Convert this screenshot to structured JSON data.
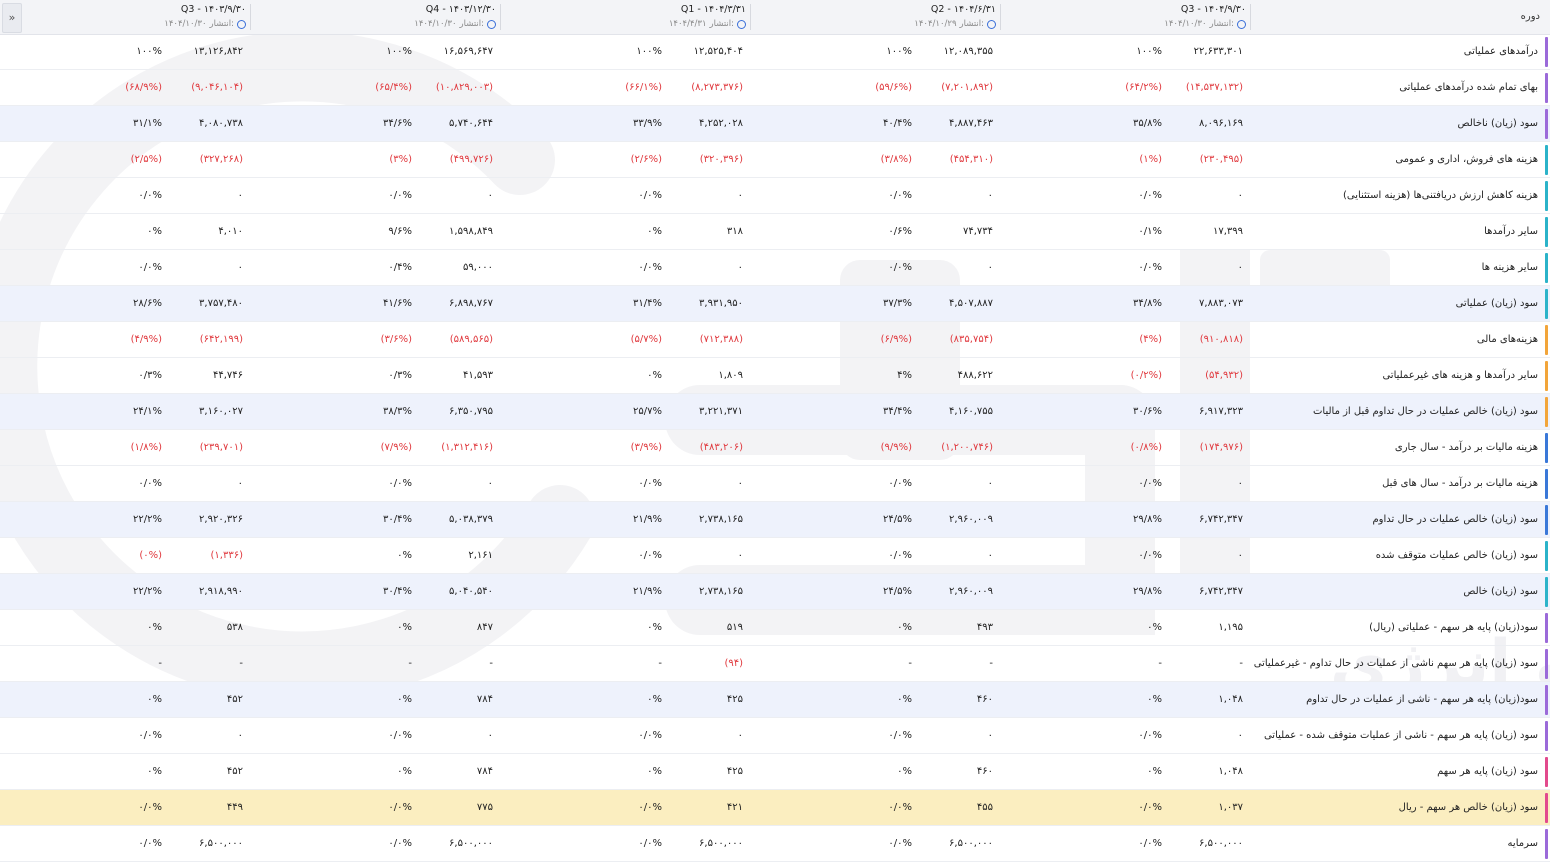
{
  "header": {
    "period_label": "دوره",
    "expand_icon": "»",
    "publish_label": "انتشار:",
    "columns": [
      {
        "title": "Q3 - ۱۴۰۴/۹/۳۰",
        "published": "۱۴۰۴/۱۰/۳۰"
      },
      {
        "title": "Q2 - ۱۴۰۴/۶/۳۱",
        "published": "۱۴۰۴/۱۰/۲۹"
      },
      {
        "title": "Q1 - ۱۴۰۴/۳/۳۱",
        "published": "۱۴۰۴/۴/۳۱"
      },
      {
        "title": "Q4 - ۱۴۰۳/۱۲/۳۰",
        "published": "۱۴۰۴/۱۰/۳۰"
      },
      {
        "title": "Q3 - ۱۴۰۳/۹/۳۰",
        "published": "۱۴۰۴/۱۰/۳۰"
      }
    ]
  },
  "watermark": {
    "text": "کارگزار بورس اوراق بهادار، کالا و انرژی"
  },
  "colors": {
    "negative": "#e0393e",
    "alt_row": "#eef2fc",
    "highlight_row": "#fbeec0"
  },
  "rows": [
    {
      "label": "درآمدهای عملیاتی",
      "bar": "#9b6ad9",
      "style": "",
      "cells": [
        [
          "۲۲,۶۳۳,۳۰۱",
          "۱۰۰%"
        ],
        [
          "۱۲,۰۸۹,۳۵۵",
          "۱۰۰%"
        ],
        [
          "۱۲,۵۲۵,۴۰۴",
          "۱۰۰%"
        ],
        [
          "۱۶,۵۶۹,۶۴۷",
          "۱۰۰%"
        ],
        [
          "۱۳,۱۲۶,۸۴۲",
          "۱۰۰%"
        ]
      ]
    },
    {
      "label": "بهای تمام شده درآمدهای عملیاتی",
      "bar": "#9b6ad9",
      "style": "",
      "cells": [
        [
          "(۱۴,۵۳۷,۱۳۲)",
          "(۶۴/۲%)"
        ],
        [
          "(۷,۲۰۱,۸۹۲)",
          "(۵۹/۶%)"
        ],
        [
          "(۸,۲۷۳,۳۷۶)",
          "(۶۶/۱%)"
        ],
        [
          "(۱۰,۸۲۹,۰۰۳)",
          "(۶۵/۴%)"
        ],
        [
          "(۹,۰۴۶,۱۰۴)",
          "(۶۸/۹%)"
        ]
      ]
    },
    {
      "label": "سود (زیان) ناخالص",
      "bar": "#9b6ad9",
      "style": "alt",
      "cells": [
        [
          "۸,۰۹۶,۱۶۹",
          "۳۵/۸%"
        ],
        [
          "۴,۸۸۷,۴۶۳",
          "۴۰/۴%"
        ],
        [
          "۴,۲۵۲,۰۲۸",
          "۳۳/۹%"
        ],
        [
          "۵,۷۴۰,۶۴۴",
          "۳۴/۶%"
        ],
        [
          "۴,۰۸۰,۷۳۸",
          "۳۱/۱%"
        ]
      ]
    },
    {
      "label": "هزینه های فروش، اداری و عمومی",
      "bar": "#2bb3c9",
      "style": "",
      "cells": [
        [
          "(۲۳۰,۴۹۵)",
          "(۱%)"
        ],
        [
          "(۴۵۴,۳۱۰)",
          "(۳/۸%)"
        ],
        [
          "(۳۲۰,۳۹۶)",
          "(۲/۶%)"
        ],
        [
          "(۴۹۹,۷۲۶)",
          "(۳%)"
        ],
        [
          "(۳۲۷,۲۶۸)",
          "(۲/۵%)"
        ]
      ]
    },
    {
      "label": "هزینه کاهش ارزش دریافتنی‌ها (هزینه استثنایی)",
      "bar": "#2bb3c9",
      "style": "",
      "cells": [
        [
          "۰",
          "۰/۰%"
        ],
        [
          "۰",
          "۰/۰%"
        ],
        [
          "۰",
          "۰/۰%"
        ],
        [
          "۰",
          "۰/۰%"
        ],
        [
          "۰",
          "۰/۰%"
        ]
      ]
    },
    {
      "label": "سایر درآمدها",
      "bar": "#2bb3c9",
      "style": "",
      "cells": [
        [
          "۱۷,۳۹۹",
          "۰/۱%"
        ],
        [
          "۷۴,۷۳۴",
          "۰/۶%"
        ],
        [
          "۳۱۸",
          "۰%"
        ],
        [
          "۱,۵۹۸,۸۴۹",
          "۹/۶%"
        ],
        [
          "۴,۰۱۰",
          "۰%"
        ]
      ]
    },
    {
      "label": "سایر هزینه ها",
      "bar": "#2bb3c9",
      "style": "",
      "cells": [
        [
          "۰",
          "۰/۰%"
        ],
        [
          "۰",
          "۰/۰%"
        ],
        [
          "۰",
          "۰/۰%"
        ],
        [
          "۵۹,۰۰۰",
          "۰/۴%"
        ],
        [
          "۰",
          "۰/۰%"
        ]
      ]
    },
    {
      "label": "سود (زیان) عملیاتی",
      "bar": "#2bb3c9",
      "style": "alt",
      "cells": [
        [
          "۷,۸۸۳,۰۷۳",
          "۳۴/۸%"
        ],
        [
          "۴,۵۰۷,۸۸۷",
          "۳۷/۳%"
        ],
        [
          "۳,۹۳۱,۹۵۰",
          "۳۱/۴%"
        ],
        [
          "۶,۸۹۸,۷۶۷",
          "۴۱/۶%"
        ],
        [
          "۳,۷۵۷,۴۸۰",
          "۲۸/۶%"
        ]
      ]
    },
    {
      "label": "هزینه‌های مالی",
      "bar": "#f2a53a",
      "style": "",
      "cells": [
        [
          "(۹۱۰,۸۱۸)",
          "(۴%)"
        ],
        [
          "(۸۳۵,۷۵۴)",
          "(۶/۹%)"
        ],
        [
          "(۷۱۲,۳۸۸)",
          "(۵/۷%)"
        ],
        [
          "(۵۸۹,۵۶۵)",
          "(۳/۶%)"
        ],
        [
          "(۶۴۲,۱۹۹)",
          "(۴/۹%)"
        ]
      ]
    },
    {
      "label": "سایر درآمدها و هزینه های غیرعملیاتی",
      "bar": "#f2a53a",
      "style": "",
      "cells": [
        [
          "(۵۴,۹۳۲)",
          "(۰/۲%)"
        ],
        [
          "۴۸۸,۶۲۲",
          "۴%"
        ],
        [
          "۱,۸۰۹",
          "۰%"
        ],
        [
          "۴۱,۵۹۳",
          "۰/۳%"
        ],
        [
          "۴۴,۷۴۶",
          "۰/۳%"
        ]
      ]
    },
    {
      "label": "سود (زیان) خالص عملیات در حال تداوم قبل از مالیات",
      "bar": "#f2a53a",
      "style": "alt",
      "cells": [
        [
          "۶,۹۱۷,۳۲۳",
          "۳۰/۶%"
        ],
        [
          "۴,۱۶۰,۷۵۵",
          "۳۴/۴%"
        ],
        [
          "۳,۲۲۱,۳۷۱",
          "۲۵/۷%"
        ],
        [
          "۶,۳۵۰,۷۹۵",
          "۳۸/۳%"
        ],
        [
          "۳,۱۶۰,۰۲۷",
          "۲۴/۱%"
        ]
      ]
    },
    {
      "label": "هزینه مالیات بر درآمد - سال جاری",
      "bar": "#3a78d8",
      "style": "",
      "cells": [
        [
          "(۱۷۴,۹۷۶)",
          "(۰/۸%)"
        ],
        [
          "(۱,۲۰۰,۷۴۶)",
          "(۹/۹%)"
        ],
        [
          "(۴۸۳,۲۰۶)",
          "(۳/۹%)"
        ],
        [
          "(۱,۳۱۲,۴۱۶)",
          "(۷/۹%)"
        ],
        [
          "(۲۳۹,۷۰۱)",
          "(۱/۸%)"
        ]
      ]
    },
    {
      "label": "هزینه مالیات بر درآمد - سال های قبل",
      "bar": "#3a78d8",
      "style": "",
      "cells": [
        [
          "۰",
          "۰/۰%"
        ],
        [
          "۰",
          "۰/۰%"
        ],
        [
          "۰",
          "۰/۰%"
        ],
        [
          "۰",
          "۰/۰%"
        ],
        [
          "۰",
          "۰/۰%"
        ]
      ]
    },
    {
      "label": "سود (زیان) خالص عملیات در حال تداوم",
      "bar": "#3a78d8",
      "style": "alt",
      "cells": [
        [
          "۶,۷۴۲,۳۴۷",
          "۲۹/۸%"
        ],
        [
          "۲,۹۶۰,۰۰۹",
          "۲۴/۵%"
        ],
        [
          "۲,۷۳۸,۱۶۵",
          "۲۱/۹%"
        ],
        [
          "۵,۰۳۸,۳۷۹",
          "۳۰/۴%"
        ],
        [
          "۲,۹۲۰,۳۲۶",
          "۲۲/۲%"
        ]
      ]
    },
    {
      "label": "سود (زیان) خالص عملیات متوقف شده",
      "bar": "#2bb3c9",
      "style": "",
      "cells": [
        [
          "۰",
          "۰/۰%"
        ],
        [
          "۰",
          "۰/۰%"
        ],
        [
          "۰",
          "۰/۰%"
        ],
        [
          "۲,۱۶۱",
          "۰%"
        ],
        [
          "(۱,۳۳۶)",
          "(۰%)"
        ]
      ]
    },
    {
      "label": "سود (زیان) خالص",
      "bar": "#2bb3c9",
      "style": "alt",
      "cells": [
        [
          "۶,۷۴۲,۳۴۷",
          "۲۹/۸%"
        ],
        [
          "۲,۹۶۰,۰۰۹",
          "۲۴/۵%"
        ],
        [
          "۲,۷۳۸,۱۶۵",
          "۲۱/۹%"
        ],
        [
          "۵,۰۴۰,۵۴۰",
          "۳۰/۴%"
        ],
        [
          "۲,۹۱۸,۹۹۰",
          "۲۲/۲%"
        ]
      ]
    },
    {
      "label": "سود(زیان) پایه هر سهم - عملیاتی (ریال)",
      "bar": "#9b6ad9",
      "style": "",
      "cells": [
        [
          "۱,۱۹۵",
          "۰%"
        ],
        [
          "۴۹۳",
          "۰%"
        ],
        [
          "۵۱۹",
          "۰%"
        ],
        [
          "۸۴۷",
          "۰%"
        ],
        [
          "۵۳۸",
          "۰%"
        ]
      ]
    },
    {
      "label": "سود (زیان) پایه هر سهم ناشی از عملیات در حال تداوم - غیرعملیاتی",
      "bar": "#9b6ad9",
      "style": "",
      "cells": [
        [
          "-",
          "-"
        ],
        [
          "-",
          "-"
        ],
        [
          "(۹۴)",
          "-"
        ],
        [
          "-",
          "-"
        ],
        [
          "-",
          "-"
        ]
      ]
    },
    {
      "label": "سود(زیان) پایه هر سهم - ناشی از عملیات در حال تداوم",
      "bar": "#9b6ad9",
      "style": "alt",
      "cells": [
        [
          "۱,۰۴۸",
          "۰%"
        ],
        [
          "۴۶۰",
          "۰%"
        ],
        [
          "۴۲۵",
          "۰%"
        ],
        [
          "۷۸۴",
          "۰%"
        ],
        [
          "۴۵۲",
          "۰%"
        ]
      ]
    },
    {
      "label": "سود (زیان) پایه هر سهم - ناشی از عملیات متوقف شده - عملیاتی",
      "bar": "#9b6ad9",
      "style": "",
      "cells": [
        [
          "۰",
          "۰/۰%"
        ],
        [
          "۰",
          "۰/۰%"
        ],
        [
          "۰",
          "۰/۰%"
        ],
        [
          "۰",
          "۰/۰%"
        ],
        [
          "۰",
          "۰/۰%"
        ]
      ]
    },
    {
      "label": "سود (زیان) پایه هر سهم",
      "bar": "#e24a8d",
      "style": "",
      "cells": [
        [
          "۱,۰۴۸",
          "۰%"
        ],
        [
          "۴۶۰",
          "۰%"
        ],
        [
          "۴۲۵",
          "۰%"
        ],
        [
          "۷۸۴",
          "۰%"
        ],
        [
          "۴۵۲",
          "۰%"
        ]
      ]
    },
    {
      "label": "سود (زیان) خالص هر سهم - ریال",
      "bar": "#e24a8d",
      "style": "hl",
      "cells": [
        [
          "۱,۰۳۷",
          "۰/۰%"
        ],
        [
          "۴۵۵",
          "۰/۰%"
        ],
        [
          "۴۲۱",
          "۰/۰%"
        ],
        [
          "۷۷۵",
          "۰/۰%"
        ],
        [
          "۴۴۹",
          "۰/۰%"
        ]
      ]
    },
    {
      "label": "سرمایه",
      "bar": "#9b6ad9",
      "style": "",
      "cells": [
        [
          "۶,۵۰۰,۰۰۰",
          "۰/۰%"
        ],
        [
          "۶,۵۰۰,۰۰۰",
          "۰/۰%"
        ],
        [
          "۶,۵۰۰,۰۰۰",
          "۰/۰%"
        ],
        [
          "۶,۵۰۰,۰۰۰",
          "۰/۰%"
        ],
        [
          "۶,۵۰۰,۰۰۰",
          "۰/۰%"
        ]
      ]
    }
  ]
}
